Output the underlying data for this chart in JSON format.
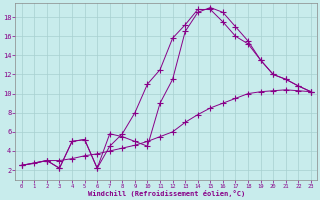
{
  "xlabel": "Windchill (Refroidissement éolien,°C)",
  "ylabel": "",
  "background_color": "#c8ecec",
  "line_color": "#880088",
  "grid_color": "#a8d0d0",
  "xlim": [
    -0.5,
    23.5
  ],
  "ylim": [
    1.0,
    19.5
  ],
  "yticks": [
    2,
    4,
    6,
    8,
    10,
    12,
    14,
    16,
    18
  ],
  "xticks": [
    0,
    1,
    2,
    3,
    4,
    5,
    6,
    7,
    8,
    9,
    10,
    11,
    12,
    13,
    14,
    15,
    16,
    17,
    18,
    19,
    20,
    21,
    22,
    23
  ],
  "line1_x": [
    0,
    1,
    2,
    3,
    4,
    5,
    6,
    7,
    8,
    9,
    10,
    11,
    12,
    13,
    14,
    15,
    16,
    17,
    18,
    19,
    20,
    21,
    22,
    23
  ],
  "line1_y": [
    2.5,
    2.7,
    3.0,
    3.0,
    3.2,
    3.5,
    3.7,
    4.0,
    4.3,
    4.6,
    5.0,
    5.5,
    6.0,
    7.0,
    7.8,
    8.5,
    9.0,
    9.5,
    10.0,
    10.2,
    10.3,
    10.4,
    10.3,
    10.2
  ],
  "line2_x": [
    0,
    2,
    3,
    4,
    5,
    6,
    7,
    8,
    9,
    10,
    11,
    12,
    13,
    14,
    15,
    16,
    17,
    18,
    19,
    20,
    21,
    22,
    23
  ],
  "line2_y": [
    2.5,
    3.0,
    2.2,
    5.0,
    5.2,
    2.2,
    5.8,
    5.5,
    5.0,
    4.5,
    9.0,
    11.5,
    16.5,
    18.5,
    19.0,
    18.5,
    17.0,
    15.5,
    13.5,
    12.0,
    11.5,
    10.8,
    10.2
  ],
  "line3_x": [
    0,
    2,
    3,
    4,
    5,
    6,
    7,
    8,
    9,
    10,
    11,
    12,
    13,
    14,
    15,
    16,
    17,
    18,
    19,
    20,
    21,
    22,
    23
  ],
  "line3_y": [
    2.5,
    3.0,
    2.2,
    5.0,
    5.2,
    2.2,
    4.5,
    5.8,
    8.0,
    11.0,
    12.5,
    15.8,
    17.2,
    18.8,
    18.8,
    17.5,
    16.0,
    15.2,
    13.5,
    12.0,
    11.5,
    10.8,
    10.2
  ]
}
